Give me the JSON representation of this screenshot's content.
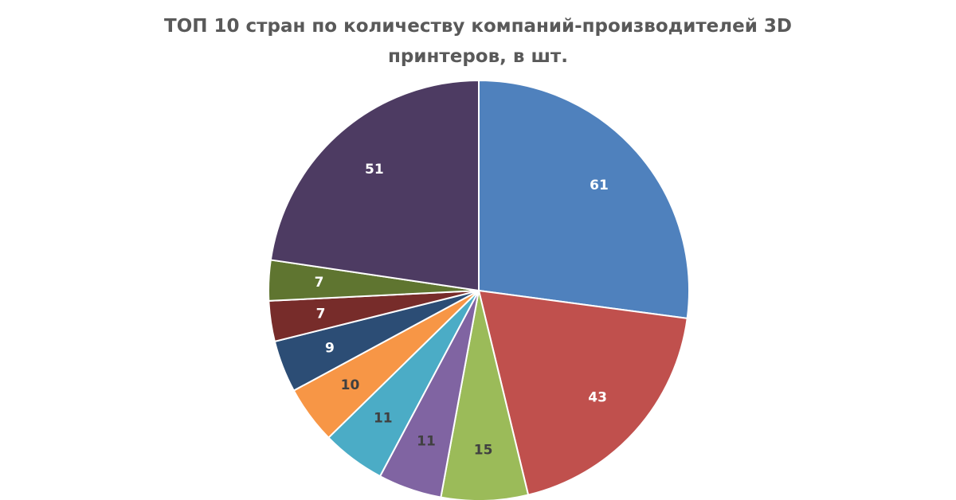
{
  "chart_data": {
    "type": "pie",
    "title_lines": [
      "ТОП 10 стран по количеству компаний-производителей 3D",
      "принтеров, в шт."
    ],
    "values": [
      61,
      43,
      15,
      11,
      11,
      10,
      9,
      7,
      7,
      51
    ],
    "labels": [
      "61",
      "43",
      "15",
      "11",
      "11",
      "10",
      "9",
      "7",
      "7",
      "51"
    ],
    "colors": [
      "#4F81BD",
      "#C0504D",
      "#9BBB59",
      "#8064A2",
      "#4BACC6",
      "#F79646",
      "#2C4D75",
      "#772C2A",
      "#5F7530",
      "#4D3B62"
    ],
    "label_colors": [
      "#ffffff",
      "#ffffff",
      "#404040",
      "#404040",
      "#404040",
      "#404040",
      "#ffffff",
      "#ffffff",
      "#ffffff",
      "#ffffff"
    ],
    "start_angle_deg": 0,
    "direction": "clockwise",
    "legend": "none"
  }
}
